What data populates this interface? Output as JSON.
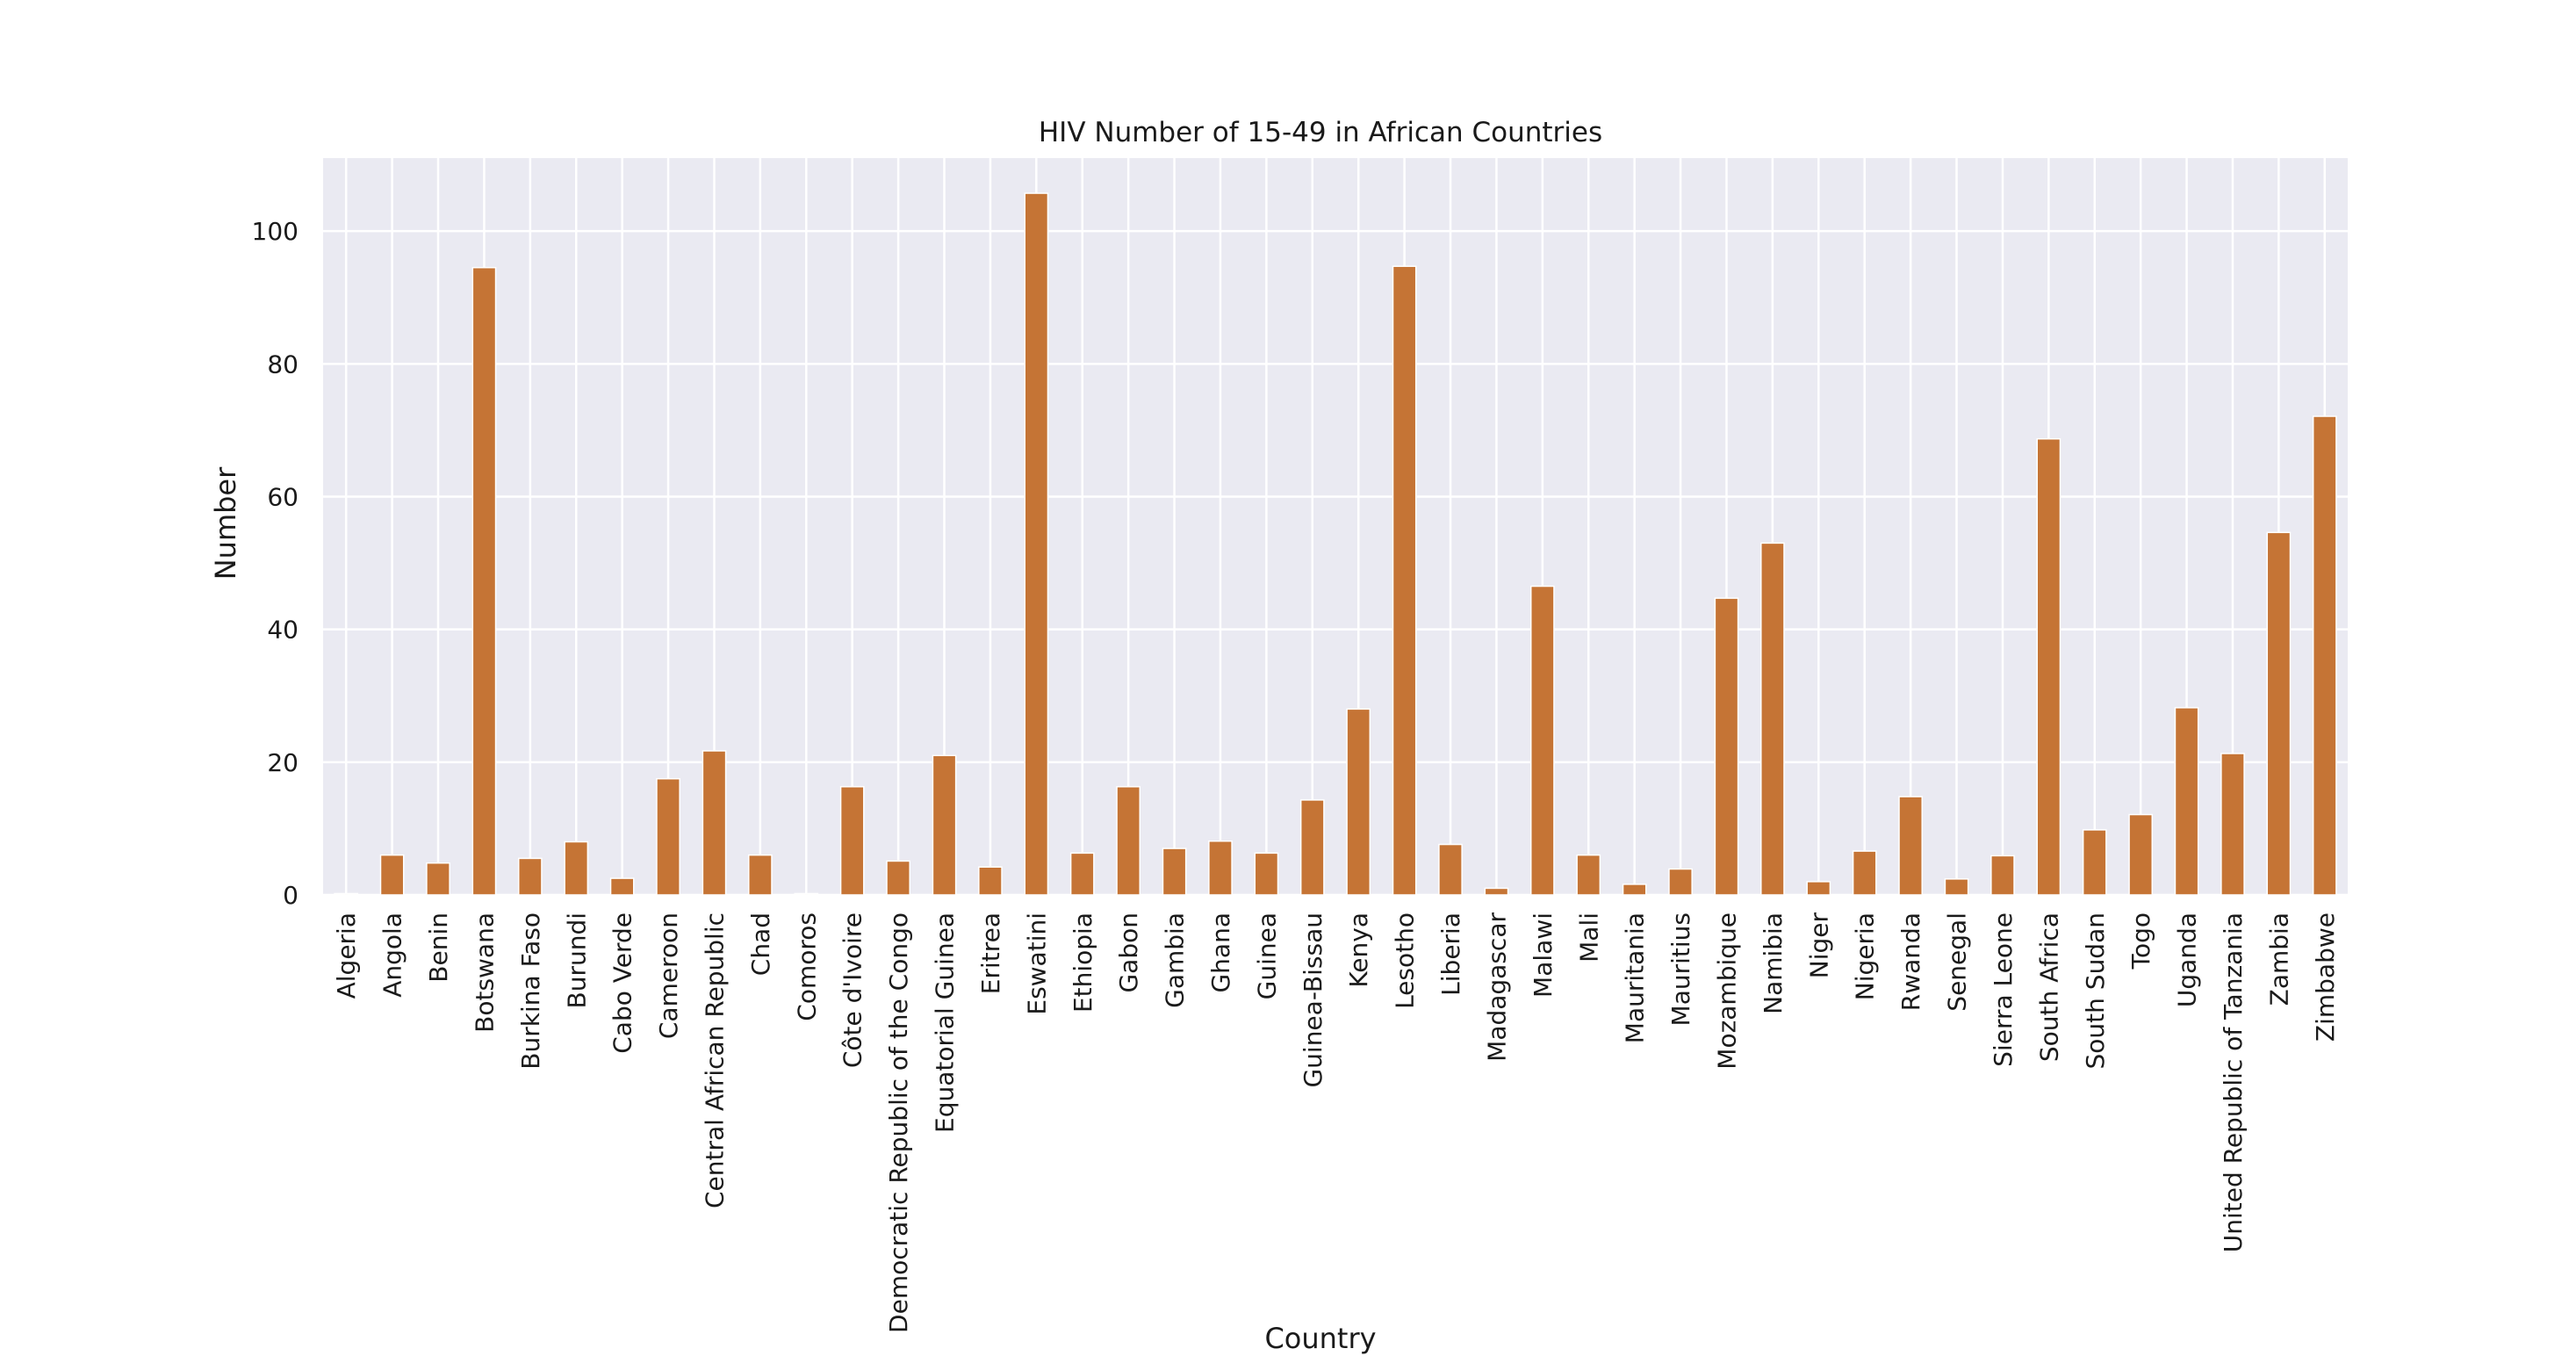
{
  "chart_data": {
    "type": "bar",
    "title": "HIV Number of 15-49 in African Countries",
    "xlabel": "Country",
    "ylabel": "Number",
    "ylim": [
      0,
      111
    ],
    "yticks": [
      0,
      20,
      40,
      60,
      80,
      100
    ],
    "grid": true,
    "legend": "none",
    "colors": {
      "bar": "#c57435",
      "plot_background": "#eaeaf2",
      "grid": "#ffffff",
      "text": "#1a1a1a"
    },
    "categories": [
      "Algeria",
      "Angola",
      "Benin",
      "Botswana",
      "Burkina Faso",
      "Burundi",
      "Cabo Verde",
      "Cameroon",
      "Central African Republic",
      "Chad",
      "Comoros",
      "Côte d'Ivoire",
      "Democratic Republic of the Congo",
      "Equatorial Guinea",
      "Eritrea",
      "Eswatini",
      "Ethiopia",
      "Gabon",
      "Gambia",
      "Ghana",
      "Guinea",
      "Guinea-Bissau",
      "Kenya",
      "Lesotho",
      "Liberia",
      "Madagascar",
      "Malawi",
      "Mali",
      "Mauritania",
      "Mauritius",
      "Mozambique",
      "Namibia",
      "Niger",
      "Nigeria",
      "Rwanda",
      "Senegal",
      "Sierra Leone",
      "South Africa",
      "South Sudan",
      "Togo",
      "Uganda",
      "United Republic of Tanzania",
      "Zambia",
      "Zimbabwe"
    ],
    "values": [
      0.2,
      6.0,
      4.8,
      94.5,
      5.5,
      8.0,
      2.5,
      17.5,
      21.7,
      6.0,
      0.2,
      16.3,
      5.1,
      21.0,
      4.2,
      105.7,
      6.3,
      16.3,
      7.0,
      8.1,
      6.3,
      14.3,
      28.0,
      94.7,
      7.6,
      1.0,
      46.5,
      6.0,
      1.6,
      3.9,
      44.7,
      53.0,
      2.0,
      6.6,
      14.8,
      2.4,
      5.9,
      68.7,
      9.8,
      12.1,
      28.2,
      21.3,
      54.6,
      72.1
    ]
  }
}
